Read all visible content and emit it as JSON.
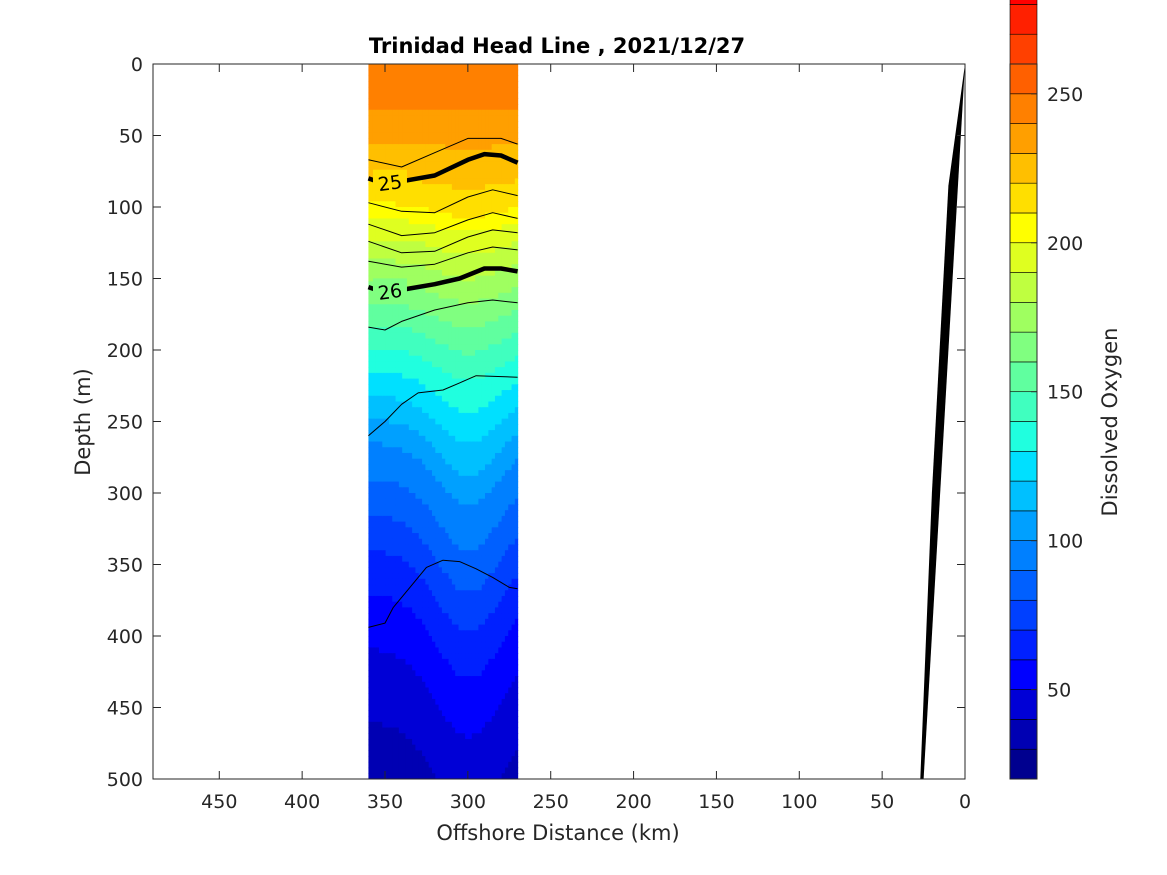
{
  "chart_data": {
    "type": "heatmap",
    "title": "Trinidad Head Line , 2021/12/27",
    "xlabel": "Offshore Distance (km)",
    "ylabel": "Depth (m)",
    "colorbar_label": "Dissolved Oxygen",
    "x_reversed": true,
    "y_reversed": true,
    "xlim": [
      490,
      0
    ],
    "ylim": [
      0,
      500
    ],
    "x_ticks": [
      450,
      400,
      350,
      300,
      250,
      200,
      150,
      100,
      50,
      0
    ],
    "y_ticks": [
      0,
      50,
      100,
      150,
      200,
      250,
      300,
      350,
      400,
      450,
      500
    ],
    "data_extent_km": [
      270,
      360
    ],
    "oxygen_profile": {
      "depths": [
        0,
        30,
        60,
        75,
        90,
        100,
        110,
        125,
        140,
        155,
        170,
        190,
        215,
        240,
        265,
        290,
        315,
        340,
        370,
        400,
        430,
        460,
        500
      ],
      "values": [
        245,
        240,
        228,
        222,
        215,
        208,
        198,
        188,
        178,
        168,
        158,
        145,
        130,
        115,
        100,
        90,
        80,
        70,
        60,
        52,
        45,
        40,
        36
      ],
      "crest_distance_km": 300,
      "crest_shift_m": [
        0,
        0,
        4,
        6,
        8,
        10,
        10,
        10,
        12,
        14,
        15,
        18,
        22,
        28,
        34,
        40,
        45,
        50,
        55,
        58,
        60,
        62,
        62
      ]
    },
    "colorbar": {
      "min": 20,
      "max": 260,
      "step": 10,
      "ticks": [
        50,
        100,
        150,
        200,
        250
      ],
      "colors": [
        "#00008f",
        "#0000b3",
        "#0000d6",
        "#0000ff",
        "#0020ff",
        "#0040ff",
        "#0060ff",
        "#0080ff",
        "#00a0ff",
        "#00c0ff",
        "#00e0ff",
        "#20ffdf",
        "#40ffbf",
        "#60ff9f",
        "#80ff80",
        "#9fff60",
        "#bfff40",
        "#dfff20",
        "#ffff00",
        "#ffdf00",
        "#ffbf00",
        "#ff9f00",
        "#ff8000",
        "#ff6000",
        "#ff4000",
        "#ff2000",
        "#ff0000",
        "#df0000",
        "#b30000",
        "#8f0000"
      ]
    },
    "density_contours": [
      {
        "level": "",
        "bold": false,
        "x": [
          360,
          340,
          320,
          300,
          280,
          270
        ],
        "y": [
          67,
          72,
          62,
          52,
          52,
          56
        ]
      },
      {
        "level": "25",
        "bold": true,
        "x": [
          360,
          350,
          340,
          320,
          300,
          290,
          280,
          270
        ],
        "y": [
          80,
          84,
          82,
          78,
          67,
          63,
          64,
          69
        ]
      },
      {
        "level": "",
        "bold": false,
        "x": [
          360,
          340,
          320,
          300,
          285,
          270
        ],
        "y": [
          97,
          103,
          104,
          93,
          88,
          92
        ]
      },
      {
        "level": "",
        "bold": false,
        "x": [
          360,
          340,
          320,
          300,
          285,
          270
        ],
        "y": [
          112,
          120,
          118,
          109,
          104,
          108
        ]
      },
      {
        "level": "",
        "bold": false,
        "x": [
          360,
          340,
          320,
          300,
          285,
          270
        ],
        "y": [
          124,
          132,
          131,
          121,
          116,
          118
        ]
      },
      {
        "level": "",
        "bold": false,
        "x": [
          360,
          340,
          320,
          300,
          285,
          270
        ],
        "y": [
          138,
          142,
          140,
          132,
          128,
          130
        ]
      },
      {
        "level": "26",
        "bold": true,
        "x": [
          360,
          350,
          340,
          320,
          305,
          290,
          280,
          270
        ],
        "y": [
          156,
          160,
          158,
          154,
          150,
          143,
          143,
          145
        ]
      },
      {
        "level": "",
        "bold": false,
        "x": [
          360,
          350,
          340,
          320,
          300,
          285,
          270
        ],
        "y": [
          184,
          186,
          180,
          172,
          167,
          165,
          167
        ]
      },
      {
        "level": "",
        "bold": false,
        "x": [
          360,
          350,
          340,
          330,
          315,
          305,
          295,
          270
        ],
        "y": [
          260,
          250,
          238,
          230,
          228,
          223,
          218,
          219
        ]
      },
      {
        "level": "",
        "bold": false,
        "x": [
          360,
          350,
          345,
          335,
          325,
          315,
          305,
          295,
          285,
          275,
          270
        ],
        "y": [
          394,
          391,
          380,
          366,
          352,
          347,
          348,
          353,
          359,
          366,
          367
        ]
      }
    ],
    "bathymetry": {
      "x": [
        0,
        10,
        20,
        27,
        25
      ],
      "y": [
        0,
        85,
        300,
        500,
        500
      ]
    }
  }
}
